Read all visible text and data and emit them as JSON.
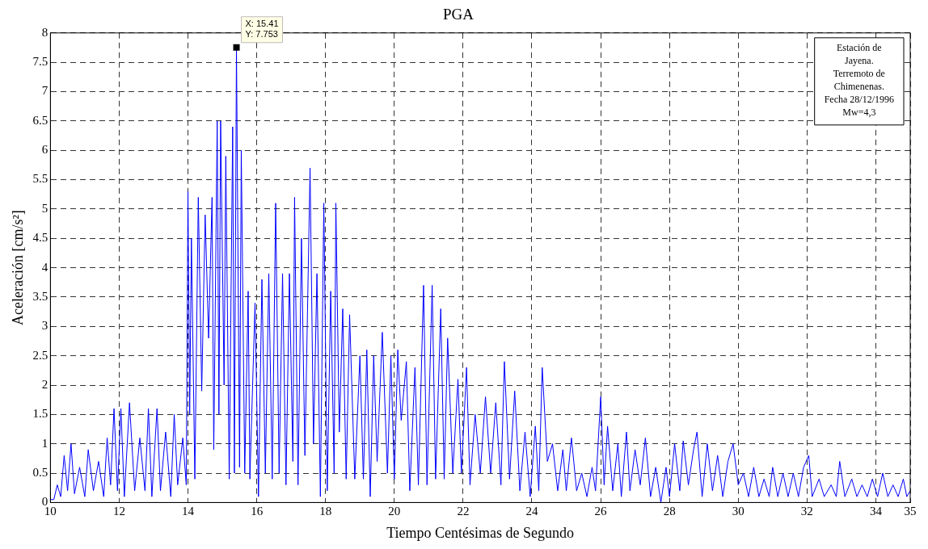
{
  "chart_data": {
    "type": "line",
    "title": "PGA",
    "xlabel": "Tiempo Centésimas de Segundo",
    "ylabel": "Aceleración [cm/s²]",
    "xlim": [
      10,
      35
    ],
    "xticks": [
      10,
      12,
      14,
      16,
      18,
      20,
      22,
      24,
      26,
      28,
      30,
      32,
      34,
      35
    ],
    "ylim": [
      0,
      8
    ],
    "yticks": [
      0,
      0.5,
      1,
      1.5,
      2,
      2.5,
      3,
      3.5,
      4,
      4.5,
      5,
      5.5,
      6,
      6.5,
      7,
      7.5,
      8
    ],
    "grid": true,
    "legend": false,
    "marker": "none",
    "line_style": "solid",
    "annotations": [
      {
        "text": "X: 15.41\nY: 7.753",
        "x": 15.41,
        "y": 7.753
      },
      "Estación de\nJayena.\nTerremoto de\nChimenenas.\nFecha 28/12/1996\nMw=4,3"
    ],
    "series": [
      {
        "color": "#0000ff",
        "x": [
          10.0,
          10.1,
          10.2,
          10.3,
          10.4,
          10.5,
          10.6,
          10.7,
          10.85,
          11.0,
          11.1,
          11.25,
          11.4,
          11.55,
          11.65,
          11.75,
          11.85,
          11.95,
          12.05,
          12.15,
          12.3,
          12.45,
          12.6,
          12.75,
          12.85,
          12.95,
          13.1,
          13.2,
          13.35,
          13.5,
          13.6,
          13.7,
          13.85,
          13.95,
          14.0,
          14.05,
          14.1,
          14.2,
          14.3,
          14.4,
          14.5,
          14.6,
          14.7,
          14.75,
          14.85,
          14.9,
          14.95,
          15.05,
          15.1,
          15.2,
          15.3,
          15.35,
          15.41,
          15.5,
          15.55,
          15.65,
          15.75,
          15.8,
          15.95,
          16.05,
          16.15,
          16.25,
          16.35,
          16.45,
          16.55,
          16.65,
          16.75,
          16.85,
          16.95,
          17.05,
          17.1,
          17.2,
          17.3,
          17.4,
          17.55,
          17.65,
          17.75,
          17.85,
          17.95,
          18.05,
          18.15,
          18.25,
          18.3,
          18.4,
          18.5,
          18.6,
          18.7,
          18.85,
          19.0,
          19.1,
          19.2,
          19.3,
          19.4,
          19.5,
          19.65,
          19.8,
          19.9,
          20.0,
          20.1,
          20.2,
          20.35,
          20.45,
          20.6,
          20.7,
          20.85,
          20.95,
          21.1,
          21.2,
          21.35,
          21.45,
          21.55,
          21.7,
          21.85,
          21.95,
          22.1,
          22.2,
          22.35,
          22.5,
          22.65,
          22.8,
          22.95,
          23.1,
          23.2,
          23.35,
          23.5,
          23.65,
          23.8,
          23.95,
          24.1,
          24.2,
          24.3,
          24.45,
          24.6,
          24.75,
          24.9,
          25.0,
          25.15,
          25.3,
          25.45,
          25.6,
          25.75,
          25.85,
          26.0,
          26.1,
          26.2,
          26.35,
          26.5,
          26.6,
          26.75,
          26.85,
          27.0,
          27.15,
          27.3,
          27.45,
          27.6,
          27.75,
          27.9,
          28.0,
          28.15,
          28.3,
          28.4,
          28.55,
          28.7,
          28.8,
          28.95,
          29.1,
          29.25,
          29.4,
          29.55,
          29.7,
          29.85,
          30.0,
          30.15,
          30.3,
          30.45,
          30.6,
          30.75,
          30.9,
          31.0,
          31.15,
          31.3,
          31.45,
          31.6,
          31.75,
          31.9,
          32.05,
          32.15,
          32.35,
          32.5,
          32.7,
          32.85,
          32.95,
          33.1,
          33.3,
          33.45,
          33.6,
          33.75,
          33.9,
          34.05,
          34.2,
          34.35,
          34.5,
          34.65,
          34.8,
          34.9,
          35.0
        ],
        "values": [
          0.05,
          0.05,
          0.3,
          0.1,
          0.8,
          0.2,
          1.0,
          0.15,
          0.6,
          0.1,
          0.9,
          0.2,
          0.7,
          0.1,
          1.1,
          0.3,
          1.6,
          0.2,
          1.6,
          0.1,
          1.7,
          0.2,
          1.1,
          0.2,
          1.6,
          0.1,
          1.6,
          0.2,
          1.2,
          0.1,
          1.5,
          0.3,
          1.1,
          0.3,
          5.3,
          1.5,
          4.5,
          0.4,
          5.2,
          1.9,
          4.9,
          2.8,
          5.2,
          0.9,
          6.5,
          1.5,
          6.5,
          2.0,
          5.9,
          0.4,
          6.4,
          0.5,
          7.753,
          0.6,
          6.0,
          0.5,
          3.6,
          0.4,
          3.4,
          0.1,
          3.8,
          0.5,
          3.9,
          0.4,
          5.1,
          0.5,
          3.9,
          0.3,
          3.9,
          0.7,
          5.2,
          0.3,
          4.5,
          0.8,
          5.7,
          1.0,
          3.9,
          0.1,
          5.1,
          0.2,
          3.6,
          0.5,
          5.1,
          1.2,
          3.3,
          0.4,
          3.2,
          0.4,
          2.5,
          0.4,
          2.6,
          0.1,
          2.5,
          0.7,
          2.9,
          0.5,
          2.5,
          0.4,
          2.6,
          1.4,
          2.4,
          0.2,
          2.3,
          0.3,
          3.7,
          0.3,
          3.7,
          0.4,
          3.3,
          0.4,
          2.8,
          0.5,
          2.1,
          0.5,
          2.3,
          0.3,
          1.5,
          0.5,
          1.8,
          0.5,
          1.7,
          0.3,
          2.4,
          0.4,
          1.9,
          0.2,
          1.2,
          0.1,
          1.3,
          0.2,
          2.3,
          0.7,
          1.0,
          0.2,
          0.9,
          0.2,
          1.1,
          0.2,
          0.5,
          0.1,
          0.6,
          0.2,
          1.8,
          0.3,
          1.3,
          0.2,
          1.0,
          0.1,
          1.2,
          0.2,
          0.9,
          0.3,
          1.1,
          0.1,
          0.6,
          0.0,
          0.6,
          0.1,
          1.0,
          0.2,
          1.05,
          0.3,
          0.9,
          1.2,
          0.1,
          1.0,
          0.2,
          0.8,
          0.1,
          0.7,
          1.0,
          0.3,
          0.5,
          0.1,
          0.6,
          0.1,
          0.4,
          0.1,
          0.6,
          0.1,
          0.5,
          0.1,
          0.5,
          0.1,
          0.6,
          0.8,
          0.1,
          0.4,
          0.1,
          0.3,
          0.1,
          0.7,
          0.1,
          0.4,
          0.1,
          0.3,
          0.1,
          0.4,
          0.1,
          0.5,
          0.1,
          0.3,
          0.1,
          0.4,
          0.1,
          0.2
        ]
      }
    ]
  }
}
